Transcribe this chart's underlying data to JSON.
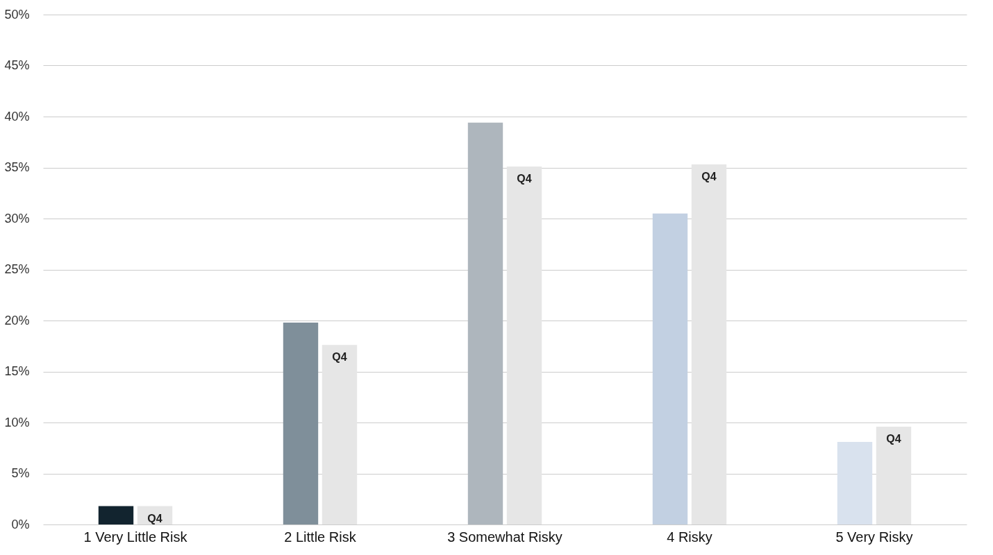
{
  "chart_data": {
    "type": "bar",
    "categories": [
      "1 Very Little Risk",
      "2 Little Risk",
      "3 Somewhat Risky",
      "4 Risky",
      "5 Very Risky"
    ],
    "series": [
      {
        "colors": [
          "#12242f",
          "#7f8f9a",
          "#aeb6bd",
          "#c2d0e2",
          "#d9e2ee"
        ],
        "values": [
          1.8,
          19.8,
          39.4,
          30.5,
          8.1
        ]
      },
      {
        "name": "Q4",
        "color": "#e6e6e6",
        "values": [
          1.8,
          17.6,
          35.1,
          35.3,
          9.6
        ]
      }
    ],
    "ylim": [
      0,
      50
    ],
    "yticks": [
      {
        "value": 0,
        "label": "0%"
      },
      {
        "value": 5,
        "label": "5%"
      },
      {
        "value": 10,
        "label": "10%"
      },
      {
        "value": 15,
        "label": "15%"
      },
      {
        "value": 20,
        "label": "20%"
      },
      {
        "value": 25,
        "label": "25%"
      },
      {
        "value": 30,
        "label": "30%"
      },
      {
        "value": 35,
        "label": "35%"
      },
      {
        "value": 40,
        "label": "40%"
      },
      {
        "value": 45,
        "label": "45%"
      },
      {
        "value": 50,
        "label": "50%"
      }
    ],
    "grid": "y"
  }
}
